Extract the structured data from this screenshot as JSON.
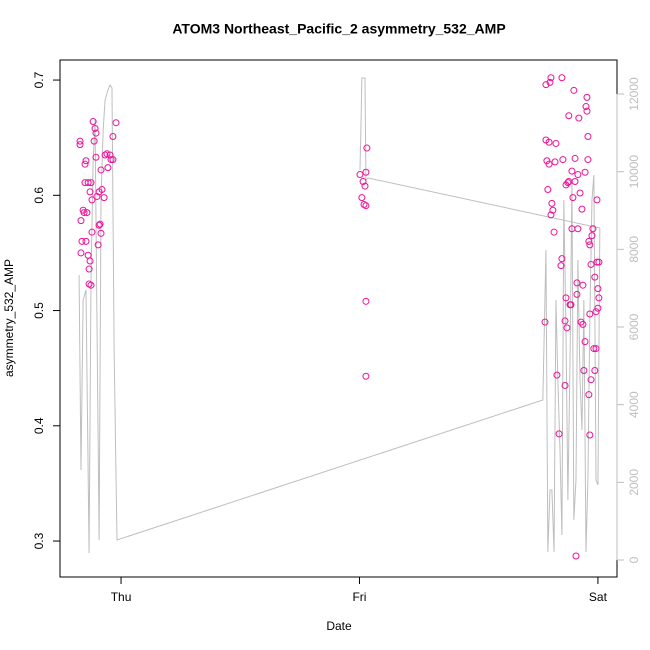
{
  "chart_data": {
    "type": "scatter",
    "title": "ATOM3 Northeast_Pacific_2 asymmetry_532_AMP",
    "xlabel": "Date",
    "ylabel": "asymmetry_532_AMP",
    "xlim": [
      -0.256,
      2.08
    ],
    "xticks": [
      {
        "value": 0,
        "label": "Thu"
      },
      {
        "value": 1,
        "label": "Fri"
      },
      {
        "value": 2,
        "label": "Sat"
      }
    ],
    "ylim": [
      0.2688,
      0.7174
    ],
    "yticks": [
      0.3,
      0.4,
      0.5,
      0.6,
      0.7
    ],
    "y2lim": [
      -438,
      12876
    ],
    "y2ticks": [
      0,
      2000,
      4000,
      6000,
      8000,
      10000,
      12000
    ],
    "series": [
      {
        "type": "line",
        "axis": "y2",
        "color": "#bebebe",
        "x": [
          -0.176,
          -0.168,
          -0.159,
          -0.147,
          -0.134,
          -0.126,
          -0.117,
          -0.109,
          -0.101,
          -0.092,
          -0.084,
          -0.075,
          -0.067,
          -0.055,
          -0.046,
          -0.038,
          -0.029,
          -0.017,
          1.769,
          1.782,
          1.79,
          1.799,
          1.807,
          1.816,
          1.824,
          1.832,
          1.841,
          1.849,
          1.857,
          1.866,
          1.874,
          1.883,
          1.891,
          1.899,
          1.908,
          1.916,
          1.925,
          1.933,
          1.941,
          1.95,
          1.958,
          1.966,
          1.975,
          1.983,
          1.992,
          2.0,
          2.008,
          1.036,
          1.027,
          1.023,
          1.01,
          1.006,
          1.002
        ],
        "values": [
          7339,
          2318,
          6695,
          6953,
          180,
          7210,
          10300,
          11330,
          6180,
          515,
          9270,
          11073,
          11845,
          12103,
          12231,
          12154,
          5408,
          515,
          4120,
          7983,
          206,
          1803,
          1803,
          206,
          6695,
          4635,
          2833,
          644,
          9270,
          5923,
          1545,
          5150,
          9785,
          1030,
          2060,
          7725,
          4635,
          3348,
          6695,
          206,
          2060,
          6180,
          9270,
          9914,
          2060,
          1931,
          8549,
          9837,
          9785,
          12412,
          12412,
          11073,
          10043
        ]
      },
      {
        "type": "scatter",
        "color": "#ee1199",
        "x": [
          -0.172,
          -0.172,
          -0.168,
          -0.168,
          -0.164,
          -0.159,
          -0.155,
          -0.151,
          -0.151,
          -0.147,
          -0.147,
          -0.143,
          -0.138,
          -0.138,
          -0.134,
          -0.134,
          -0.13,
          -0.13,
          -0.126,
          -0.126,
          -0.122,
          -0.122,
          -0.117,
          -0.113,
          -0.109,
          -0.105,
          -0.105,
          -0.101,
          -0.096,
          -0.092,
          -0.092,
          -0.088,
          -0.084,
          -0.084,
          -0.08,
          -0.071,
          -0.067,
          -0.059,
          -0.055,
          -0.046,
          -0.042,
          -0.034,
          -0.034,
          -0.021,
          1.002,
          1.01,
          1.015,
          1.019,
          1.023,
          1.027,
          1.031,
          1.027,
          1.027,
          1.027,
          1.778,
          1.782,
          1.782,
          1.786,
          1.79,
          1.795,
          1.795,
          1.799,
          1.803,
          1.803,
          1.807,
          1.811,
          1.816,
          1.82,
          1.824,
          1.828,
          1.837,
          1.845,
          1.849,
          1.849,
          1.853,
          1.862,
          1.862,
          1.866,
          1.866,
          1.87,
          1.874,
          1.878,
          1.878,
          1.883,
          1.887,
          1.891,
          1.891,
          1.895,
          1.899,
          1.904,
          1.904,
          1.908,
          1.912,
          1.912,
          1.916,
          1.916,
          1.92,
          1.925,
          1.929,
          1.933,
          1.937,
          1.937,
          1.941,
          1.946,
          1.946,
          1.95,
          1.954,
          1.954,
          1.958,
          1.958,
          1.962,
          1.962,
          1.966,
          1.966,
          1.966,
          1.971,
          1.971,
          1.975,
          1.979,
          1.983,
          1.987,
          1.987,
          1.992,
          1.992,
          1.996,
          1.996,
          2.0,
          2.0,
          2.004,
          2.004
        ],
        "values": [
          0.647,
          0.644,
          0.578,
          0.55,
          0.56,
          0.587,
          0.585,
          0.611,
          0.627,
          0.63,
          0.56,
          0.585,
          0.611,
          0.548,
          0.523,
          0.536,
          0.603,
          0.543,
          0.522,
          0.611,
          0.568,
          0.596,
          0.664,
          0.647,
          0.658,
          0.654,
          0.633,
          0.599,
          0.557,
          0.574,
          0.603,
          0.575,
          0.567,
          0.622,
          0.605,
          0.598,
          0.635,
          0.636,
          0.624,
          0.635,
          0.631,
          0.631,
          0.651,
          0.663,
          0.618,
          0.598,
          0.612,
          0.592,
          0.608,
          0.591,
          0.641,
          0.62,
          0.508,
          0.443,
          0.49,
          0.696,
          0.648,
          0.63,
          0.605,
          0.627,
          0.646,
          0.698,
          0.702,
          0.583,
          0.593,
          0.587,
          0.568,
          0.629,
          0.645,
          0.444,
          0.393,
          0.539,
          0.545,
          0.702,
          0.631,
          0.435,
          0.491,
          0.511,
          0.609,
          0.485,
          0.611,
          0.669,
          0.612,
          0.505,
          0.505,
          0.571,
          0.621,
          0.598,
          0.691,
          0.632,
          0.612,
          0.287,
          0.524,
          0.514,
          0.571,
          0.618,
          0.667,
          0.602,
          0.49,
          0.588,
          0.522,
          0.488,
          0.448,
          0.473,
          0.62,
          0.677,
          0.685,
          0.673,
          0.631,
          0.651,
          0.56,
          0.427,
          0.392,
          0.557,
          0.497,
          0.44,
          0.54,
          0.565,
          0.571,
          0.467,
          0.448,
          0.529,
          0.499,
          0.467,
          0.596,
          0.542,
          0.519,
          0.502,
          0.511,
          0.542
        ]
      }
    ]
  }
}
